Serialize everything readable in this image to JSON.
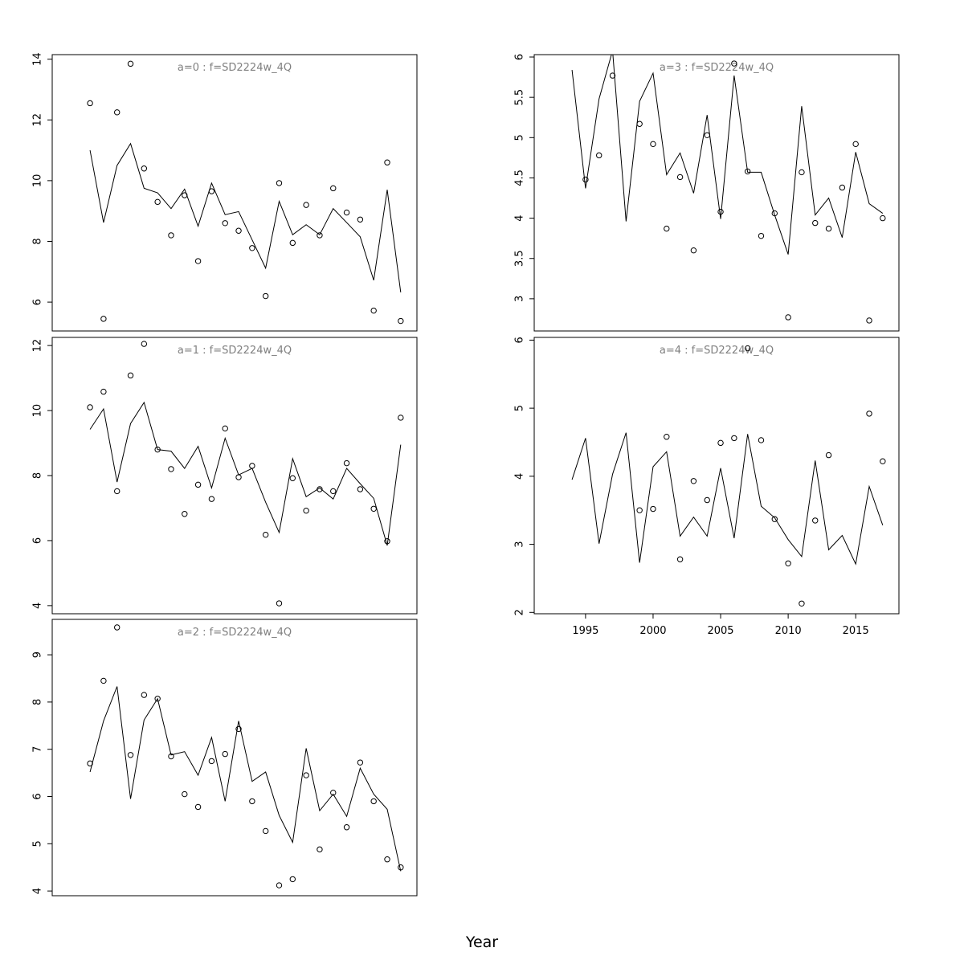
{
  "figure": {
    "xlabel": "Year"
  },
  "chart_data": [
    {
      "type": "line",
      "title": "a=0 : f=SD2224w_4Q",
      "x": [
        1994,
        1995,
        1996,
        1997,
        1998,
        1999,
        2000,
        2001,
        2002,
        2003,
        2004,
        2005,
        2006,
        2007,
        2008,
        2009,
        2010,
        2011,
        2012,
        2013,
        2014,
        2015,
        2016,
        2017
      ],
      "ylim": [
        5.05,
        14.15
      ],
      "yticks": [
        6,
        8,
        10,
        12,
        14
      ],
      "series": [
        {
          "style": "points",
          "values": [
            12.55,
            5.45,
            12.25,
            13.85,
            10.4,
            9.3,
            8.2,
            9.52,
            7.35,
            9.65,
            8.6,
            8.35,
            7.78,
            6.2,
            9.92,
            7.95,
            9.2,
            8.2,
            9.75,
            8.95,
            8.72,
            5.72,
            10.6,
            5.38
          ]
        },
        {
          "style": "line",
          "values": [
            11.0,
            8.62,
            10.5,
            11.22,
            9.75,
            9.6,
            9.08,
            9.72,
            8.5,
            9.92,
            8.88,
            8.98,
            8.05,
            7.12,
            9.32,
            8.22,
            8.55,
            8.22,
            9.08,
            8.62,
            8.15,
            6.72,
            9.7,
            6.32
          ]
        }
      ]
    },
    {
      "type": "line",
      "title": "a=1 : f=SD2224w_4Q",
      "x": [
        1994,
        1995,
        1996,
        1997,
        1998,
        1999,
        2000,
        2001,
        2002,
        2003,
        2004,
        2005,
        2006,
        2007,
        2008,
        2009,
        2010,
        2011,
        2012,
        2013,
        2014,
        2015,
        2016,
        2017
      ],
      "ylim": [
        3.75,
        12.25
      ],
      "yticks": [
        4,
        6,
        8,
        10,
        12
      ],
      "series": [
        {
          "style": "points",
          "values": [
            10.1,
            10.58,
            7.52,
            11.08,
            12.05,
            8.8,
            8.2,
            6.82,
            7.72,
            7.28,
            9.45,
            7.95,
            8.3,
            6.18,
            4.07,
            7.92,
            6.92,
            7.58,
            7.52,
            8.38,
            7.58,
            6.98,
            5.98,
            9.78
          ]
        },
        {
          "style": "line",
          "values": [
            9.42,
            10.05,
            7.8,
            9.6,
            10.25,
            8.8,
            8.75,
            8.22,
            8.9,
            7.62,
            9.15,
            8.02,
            8.22,
            7.18,
            6.25,
            8.52,
            7.35,
            7.62,
            7.28,
            8.22,
            7.75,
            7.3,
            5.85,
            8.95
          ]
        }
      ]
    },
    {
      "type": "line",
      "title": "a=2 : f=SD2224w_4Q",
      "x": [
        1994,
        1995,
        1996,
        1997,
        1998,
        1999,
        2000,
        2001,
        2002,
        2003,
        2004,
        2005,
        2006,
        2007,
        2008,
        2009,
        2010,
        2011,
        2012,
        2013,
        2014,
        2015,
        2016,
        2017
      ],
      "ylim": [
        3.9,
        9.75
      ],
      "yticks": [
        4,
        5,
        6,
        7,
        8,
        9
      ],
      "series": [
        {
          "style": "points",
          "values": [
            6.7,
            8.45,
            9.58,
            6.88,
            8.15,
            8.07,
            6.85,
            6.05,
            5.78,
            6.75,
            6.9,
            7.43,
            5.9,
            5.27,
            4.12,
            4.25,
            6.45,
            4.88,
            6.08,
            5.35,
            6.72,
            5.9,
            4.67,
            4.5
          ]
        },
        {
          "style": "line",
          "values": [
            6.52,
            7.6,
            8.33,
            5.95,
            7.62,
            8.07,
            6.88,
            6.95,
            6.45,
            7.25,
            5.9,
            7.6,
            6.32,
            6.52,
            5.6,
            5.03,
            7.02,
            5.7,
            6.05,
            5.58,
            6.6,
            6.05,
            5.73,
            4.42
          ]
        }
      ]
    },
    {
      "type": "line",
      "title": "a=3 : f=SD2224w_4Q",
      "x": [
        1994,
        1995,
        1996,
        1997,
        1998,
        1999,
        2000,
        2001,
        2002,
        2003,
        2004,
        2005,
        2006,
        2007,
        2008,
        2009,
        2010,
        2011,
        2012,
        2013,
        2014,
        2015,
        2016,
        2017
      ],
      "ylim": [
        2.6,
        6.03
      ],
      "yticks": [
        3.0,
        3.5,
        4.0,
        4.5,
        5.0,
        5.5,
        6.0
      ],
      "series": [
        {
          "style": "points",
          "values": [
            null,
            4.48,
            4.78,
            5.77,
            null,
            5.17,
            4.92,
            3.87,
            4.51,
            3.6,
            5.03,
            4.08,
            5.92,
            4.58,
            3.78,
            4.06,
            2.77,
            4.57,
            3.94,
            3.87,
            4.38,
            4.92,
            2.73,
            4.0
          ]
        },
        {
          "style": "line",
          "values": [
            5.84,
            4.37,
            5.48,
            6.08,
            3.96,
            5.45,
            5.8,
            4.54,
            4.81,
            4.31,
            5.28,
            3.99,
            5.77,
            4.57,
            4.57,
            4.04,
            3.55,
            5.39,
            4.04,
            4.25,
            3.76,
            4.82,
            4.18,
            4.06
          ]
        }
      ]
    },
    {
      "type": "line",
      "title": "a=4 : f=SD2224w_4Q",
      "x": [
        1994,
        1995,
        1996,
        1997,
        1998,
        1999,
        2000,
        2001,
        2002,
        2003,
        2004,
        2005,
        2006,
        2007,
        2008,
        2009,
        2010,
        2011,
        2012,
        2013,
        2014,
        2015,
        2016,
        2017
      ],
      "xticks": [
        1995,
        2000,
        2005,
        2010,
        2015
      ],
      "ylim": [
        1.98,
        6.04
      ],
      "yticks": [
        2,
        3,
        4,
        5,
        6
      ],
      "series": [
        {
          "style": "points",
          "values": [
            null,
            null,
            null,
            null,
            null,
            3.5,
            3.52,
            4.58,
            2.78,
            3.93,
            3.65,
            4.49,
            4.56,
            5.88,
            4.53,
            3.37,
            2.72,
            2.13,
            3.35,
            4.31,
            null,
            null,
            4.92,
            4.22
          ]
        },
        {
          "style": "line",
          "values": [
            3.95,
            4.56,
            3.01,
            4.03,
            4.64,
            2.73,
            4.14,
            4.36,
            3.12,
            3.4,
            3.12,
            4.12,
            3.09,
            4.62,
            3.56,
            3.39,
            3.07,
            2.82,
            4.23,
            2.92,
            3.13,
            2.71,
            3.85,
            3.28
          ]
        }
      ]
    }
  ]
}
